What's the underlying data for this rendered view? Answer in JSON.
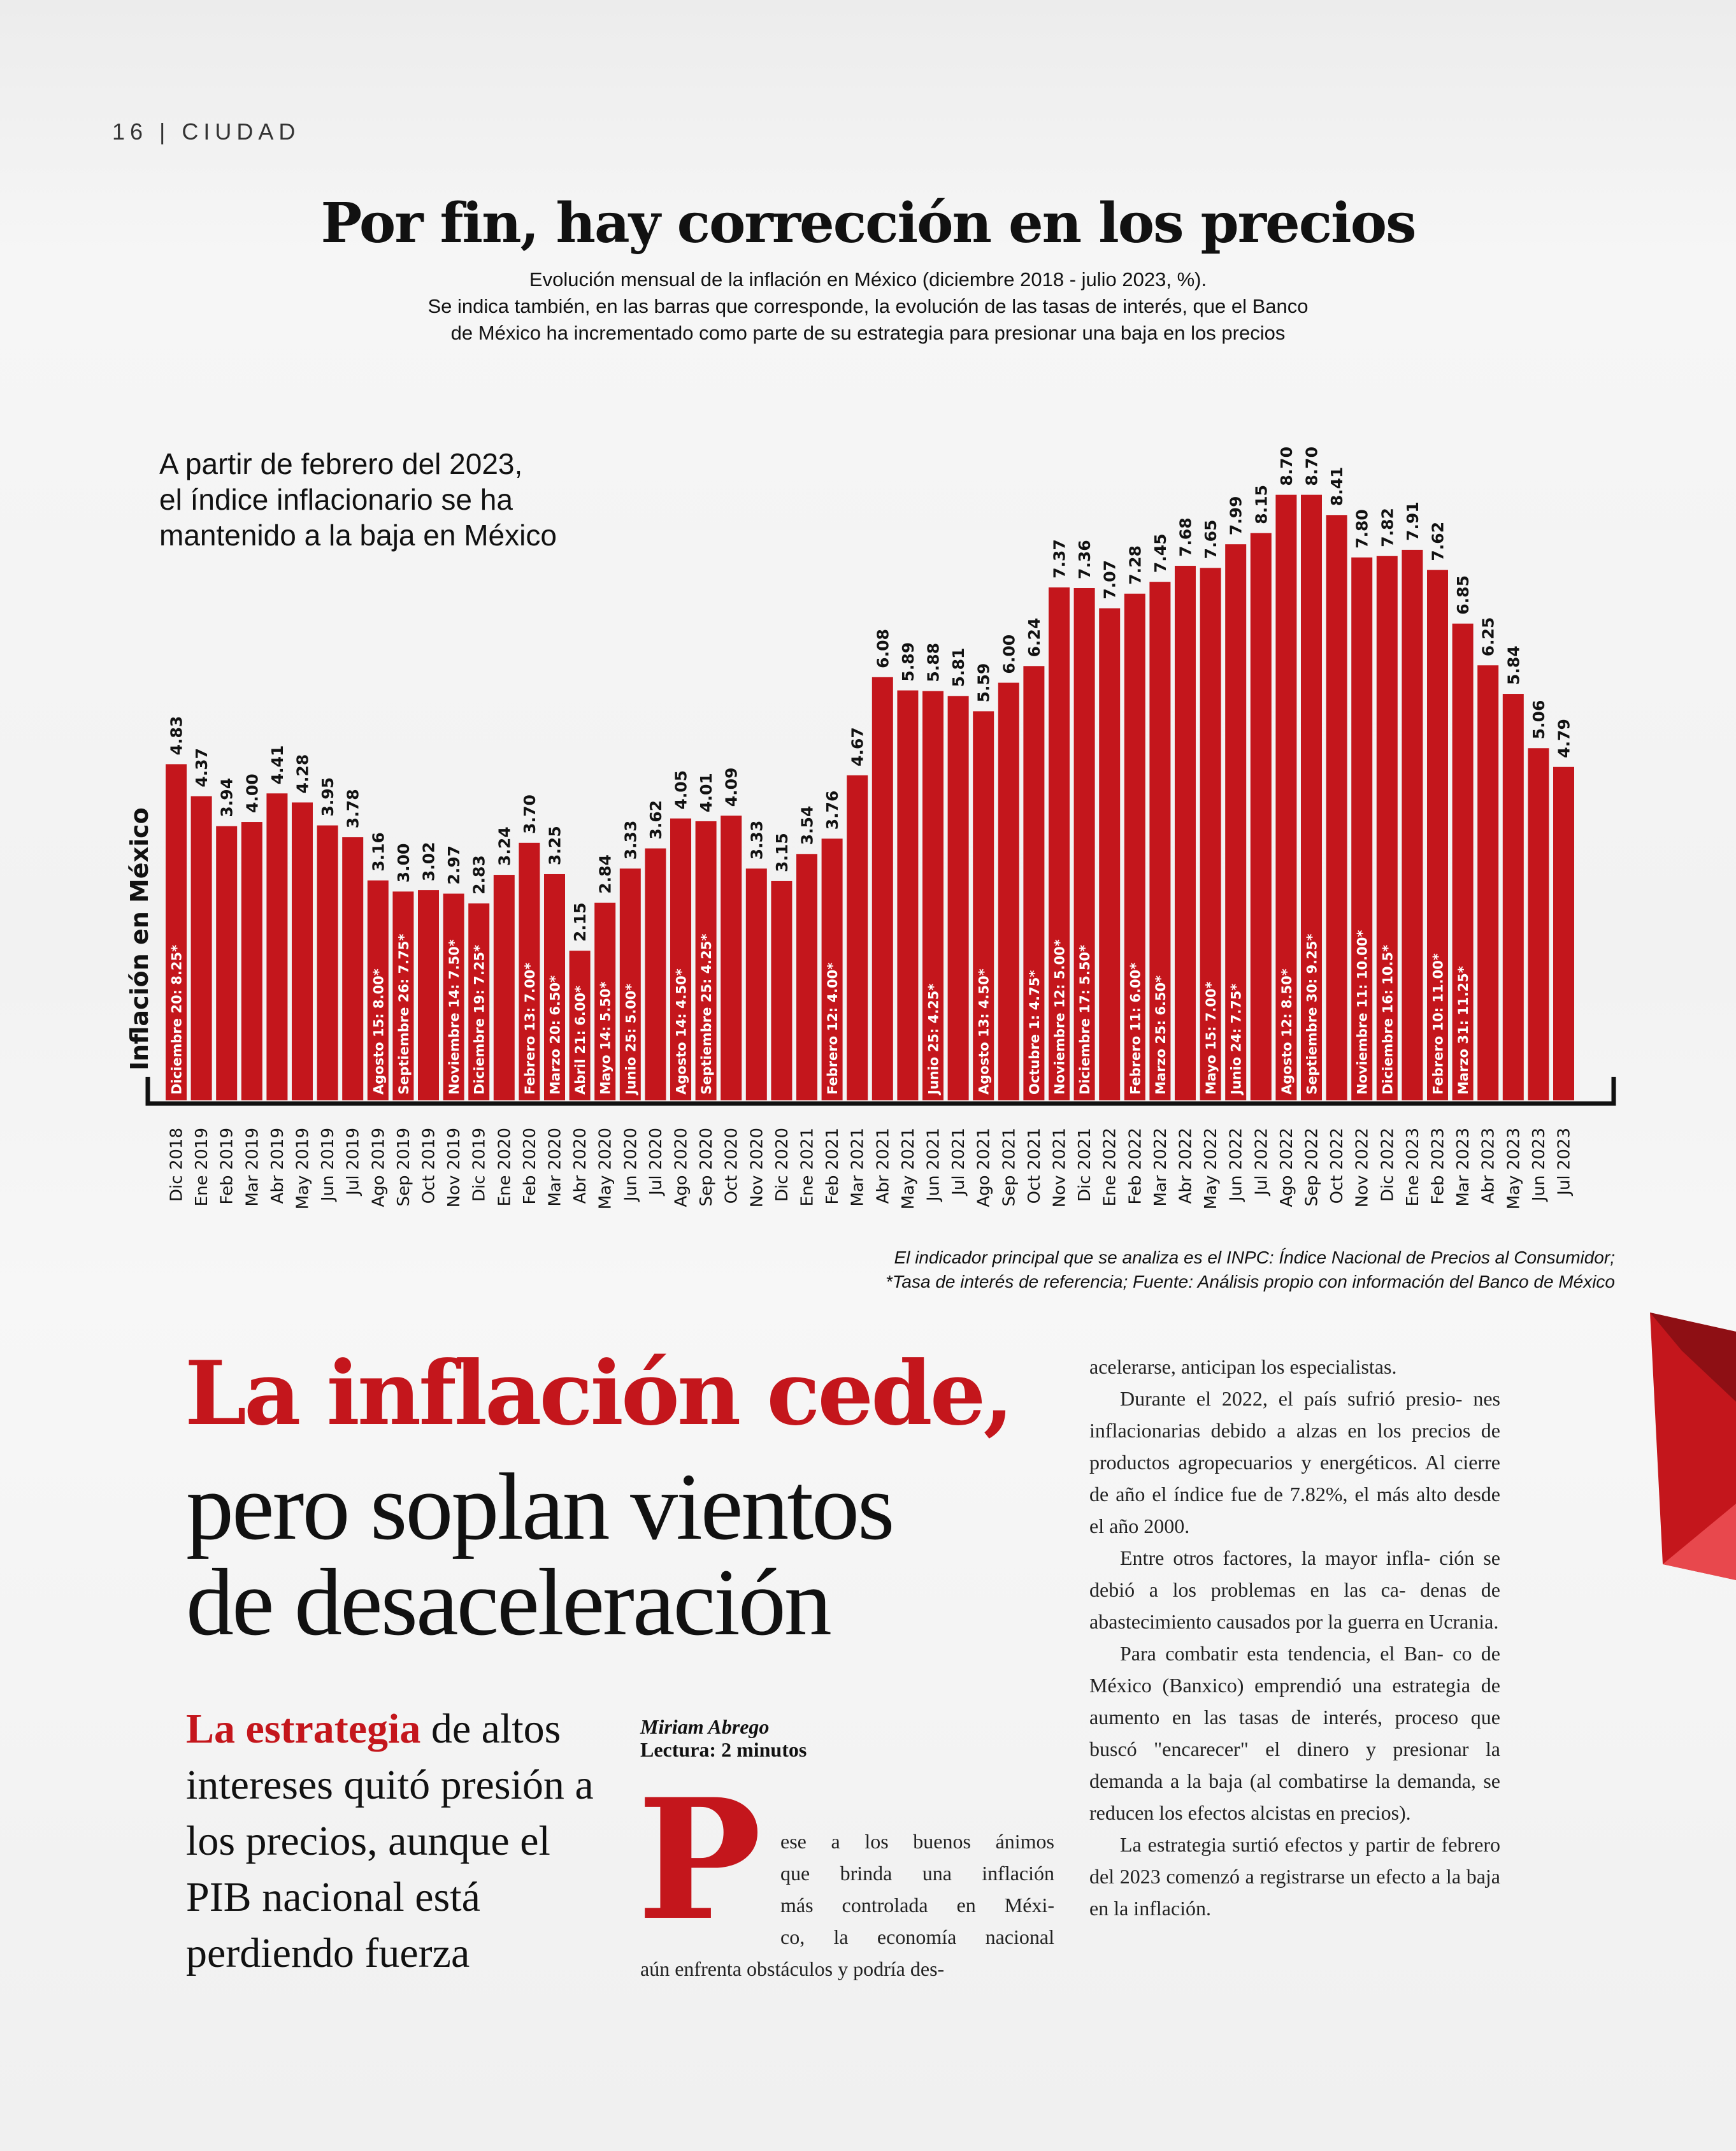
{
  "folio": "16 | CIUDAD",
  "chart_title": "Por fin, hay corrección en los precios",
  "chart_subtitle": [
    "Evolución mensual de la inflación en México (diciembre 2018 - julio 2023, %).",
    "Se indica también, en las barras que corresponde,  la evolución de las tasas de interés, que el Banco",
    "de México ha incrementado como parte de su estrategia para presionar una baja en los precios"
  ],
  "callout": [
    "A partir de febrero del 2023,",
    "el índice inflacionario se ha",
    "mantenido a la baja en México"
  ],
  "footnote": [
    "El indicador principal que se analiza es el INPC: Índice Nacional de Precios al Consumidor;",
    "*Tasa de interés de referencia; Fuente: Análisis propio con información del Banco de México"
  ],
  "chart_data": {
    "type": "bar",
    "title": "Por fin, hay corrección en los precios",
    "ylabel": "Inflación en México",
    "ylim": [
      0,
      9.2
    ],
    "grid": false,
    "bar_color": "#c4161c",
    "categories": [
      "Dic 2018",
      "Ene 2019",
      "Feb 2019",
      "Mar 2019",
      "Abr 2019",
      "May 2019",
      "Jun 2019",
      "Jul 2019",
      "Ago 2019",
      "Sep 2019",
      "Oct 2019",
      "Nov 2019",
      "Dic 2019",
      "Ene 2020",
      "Feb 2020",
      "Mar 2020",
      "Abr 2020",
      "May 2020",
      "Jun 2020",
      "Jul 2020",
      "Ago 2020",
      "Sep 2020",
      "Oct 2020",
      "Nov 2020",
      "Dic 2020",
      "Ene 2021",
      "Feb 2021",
      "Mar 2021",
      "Abr 2021",
      "May 2021",
      "Jun 2021",
      "Jul 2021",
      "Ago 2021",
      "Sep 2021",
      "Oct 2021",
      "Nov 2021",
      "Dic 2021",
      "Ene 2022",
      "Feb 2022",
      "Mar 2022",
      "Abr 2022",
      "May 2022",
      "Jun 2022",
      "Jul 2022",
      "Ago 2022",
      "Sep 2022",
      "Oct 2022",
      "Nov 2022",
      "Dic 2022",
      "Ene 2023",
      "Feb 2023",
      "Mar 2023",
      "Abr 2023",
      "May 2023",
      "Jun 2023",
      "Jul 2023"
    ],
    "values": [
      4.83,
      4.37,
      3.94,
      4.0,
      4.41,
      4.28,
      3.95,
      3.78,
      3.16,
      3.0,
      3.02,
      2.97,
      2.83,
      3.24,
      3.7,
      3.25,
      2.15,
      2.84,
      3.33,
      3.62,
      4.05,
      4.01,
      4.09,
      3.33,
      3.15,
      3.54,
      3.76,
      4.67,
      6.08,
      5.89,
      5.88,
      5.81,
      5.59,
      6.0,
      6.24,
      7.37,
      7.36,
      7.07,
      7.28,
      7.45,
      7.68,
      7.65,
      7.99,
      8.15,
      8.7,
      8.7,
      8.41,
      7.8,
      7.82,
      7.91,
      7.62,
      6.85,
      6.25,
      5.84,
      5.06,
      4.79
    ],
    "value_labels": [
      "4.83",
      "4.37",
      "3.94",
      "4.00",
      "4.41",
      "4.28",
      "3.95",
      "3.78",
      "3.16",
      "3.00",
      "3.02",
      "2.97",
      "2.83",
      "3.24",
      "3.70",
      "3.25",
      "2.15",
      "2.84",
      "3.33",
      "3.62",
      "4.05",
      "4.01",
      "4.09",
      "3.33",
      "3.15",
      "3.54",
      "3.76",
      "4.67",
      "6.08",
      "5.89",
      "5.88",
      "5.81",
      "5.59",
      "6.00",
      "6.24",
      "7.37",
      "7.36",
      "7.07",
      "7.28",
      "7.45",
      "7.68",
      "7.65",
      "7.99",
      "8.15",
      "8.70",
      "8.70",
      "8.41",
      "7.80",
      "7.82",
      "7.91",
      "7.62",
      "6.85",
      "6.25",
      "5.84",
      "5.06",
      "4.79"
    ],
    "rate_annotations": [
      {
        "index": 0,
        "text": "Diciembre 20: 8.25*"
      },
      {
        "index": 8,
        "text": "Agosto 15: 8.00*"
      },
      {
        "index": 9,
        "text": "Septiembre 26: 7.75*"
      },
      {
        "index": 11,
        "text": "Noviembre 14: 7.50*"
      },
      {
        "index": 12,
        "text": "Diciembre 19: 7.25*"
      },
      {
        "index": 14,
        "text": "Febrero 13: 7.00*"
      },
      {
        "index": 15,
        "text": "Marzo 20: 6.50*"
      },
      {
        "index": 16,
        "text": "Abril 21: 6.00*"
      },
      {
        "index": 17,
        "text": "Mayo 14: 5.50*"
      },
      {
        "index": 18,
        "text": "Junio 25: 5.00*"
      },
      {
        "index": 20,
        "text": "Agosto 14: 4.50*"
      },
      {
        "index": 21,
        "text": "Septiembre 25: 4.25*"
      },
      {
        "index": 26,
        "text": "Febrero 12: 4.00*"
      },
      {
        "index": 30,
        "text": "Junio 25: 4.25*"
      },
      {
        "index": 32,
        "text": "Agosto 13: 4.50*"
      },
      {
        "index": 34,
        "text": "Octubre 1: 4.75*"
      },
      {
        "index": 35,
        "text": "Noviembre 12: 5.00*"
      },
      {
        "index": 36,
        "text": "Diciembre 17: 5.50*"
      },
      {
        "index": 38,
        "text": "Febrero 11: 6.00*"
      },
      {
        "index": 39,
        "text": "Marzo 25: 6.50*"
      },
      {
        "index": 41,
        "text": "Mayo 15: 7.00*"
      },
      {
        "index": 42,
        "text": "Junio 24: 7.75*"
      },
      {
        "index": 44,
        "text": "Agosto 12: 8.50*"
      },
      {
        "index": 45,
        "text": "Septiembre 30: 9.25*"
      },
      {
        "index": 47,
        "text": "Noviembre 11: 10.00*"
      },
      {
        "index": 48,
        "text": "Diciembre 16: 10.5*"
      },
      {
        "index": 50,
        "text": "Febrero 10: 11.00*"
      },
      {
        "index": 51,
        "text": "Marzo 31: 11.25*"
      }
    ]
  },
  "article": {
    "headline_red": "La inflación cede,",
    "headline_black": [
      "pero soplan vientos",
      "de desaceleración"
    ],
    "deck_lead": "La estrategia",
    "deck_rest": " de altos intereses quitó presión a los precios, aunque el PIB nacional está perdiendo fuerza",
    "author": "Miriam Abrego",
    "reading_time": "Lectura: 2 minutos",
    "drop_cap": "P",
    "col1_lines": [
      "ese a los buenos ánimos",
      "que brinda una inflación",
      "más controlada en Méxi-",
      "co, la economía nacional"
    ],
    "col1_last": "aún enfrenta obstáculos y podría des-",
    "col2_paragraphs": [
      "acelerarse, anticipan los especialistas.",
      "Durante el 2022, el país sufrió presio- nes inflacionarias debido a alzas en los precios de productos agropecuarios y energéticos. Al cierre de año el índice fue de 7.82%, el más alto desde el año 2000.",
      "Entre otros factores, la mayor infla- ción se debió a los problemas en las ca- denas de abastecimiento causados por la guerra en Ucrania.",
      "Para combatir esta tendencia, el Ban- co de México (Banxico) emprendió una estrategia de aumento en las tasas de interés, proceso que buscó \"encarecer\" el dinero y presionar la demanda a la baja (al combatirse la demanda, se reducen los efectos alcistas en precios).",
      "La estrategia surtió efectos y partir de febrero del 2023 comenzó a registrarse un efecto a la baja en la inflación."
    ]
  }
}
